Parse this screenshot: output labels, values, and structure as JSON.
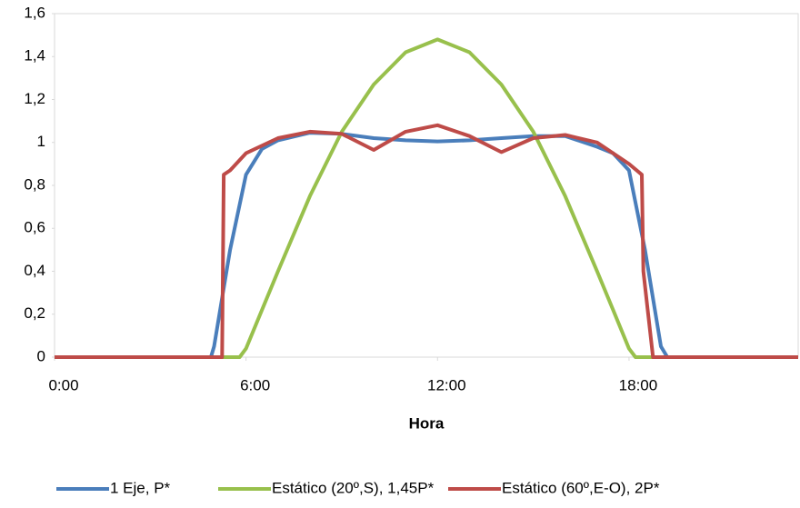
{
  "chart_data": {
    "type": "line",
    "x_label": "Hora",
    "xlim": [
      0,
      23.3
    ],
    "xticks": [
      {
        "value": 0,
        "label": "0:00"
      },
      {
        "value": 6,
        "label": "6:00"
      },
      {
        "value": 12,
        "label": "12:00"
      },
      {
        "value": 18,
        "label": "18:00"
      }
    ],
    "ylim": [
      0,
      1.6
    ],
    "yticks": [
      0,
      {
        "value": 0.2,
        "label": "0,2"
      },
      {
        "value": 0.4,
        "label": "0,4"
      },
      {
        "value": 0.6,
        "label": "0,6"
      },
      {
        "value": 0.8,
        "label": "0,8"
      },
      1,
      {
        "value": 1.2,
        "label": "1,2"
      },
      {
        "value": 1.4,
        "label": "1,4"
      },
      {
        "value": 1.6,
        "label": "1,6"
      }
    ],
    "grid": false,
    "legend": "bottom",
    "series": [
      {
        "name": "1 Eje, P*",
        "color": "#4a7ebb",
        "x": [
          0,
          4.9,
          5.0,
          5.5,
          6,
          6.5,
          7,
          8,
          9,
          10,
          11,
          12,
          13,
          14,
          15,
          16,
          17,
          17.5,
          18,
          18.5,
          19,
          19.2,
          23.3
        ],
        "values": [
          0,
          0,
          0.05,
          0.5,
          0.85,
          0.97,
          1.01,
          1.045,
          1.04,
          1.02,
          1.01,
          1.005,
          1.01,
          1.02,
          1.03,
          1.03,
          0.98,
          0.95,
          0.87,
          0.5,
          0.05,
          0,
          0
        ]
      },
      {
        "name": "Estático (20º,S), 1,45P*",
        "color": "#98c04c",
        "x": [
          0,
          5.8,
          6,
          6.5,
          7,
          8,
          9,
          10,
          11,
          12,
          13,
          14,
          15,
          16,
          17,
          17.5,
          18,
          18.2,
          23.3
        ],
        "values": [
          0,
          0,
          0.04,
          0.22,
          0.4,
          0.75,
          1.05,
          1.27,
          1.42,
          1.48,
          1.42,
          1.27,
          1.05,
          0.75,
          0.4,
          0.22,
          0.04,
          0,
          0
        ]
      },
      {
        "name": "Estático (60º,E-O), 2P*",
        "color": "#be4b48",
        "x": [
          0,
          5.25,
          5.3,
          5.5,
          6,
          7,
          8,
          9,
          10,
          11,
          12,
          13,
          14,
          15,
          16,
          17,
          18,
          18.4,
          18.45,
          18.6,
          18.75,
          18.8,
          23.3
        ],
        "values": [
          0,
          0,
          0.85,
          0.87,
          0.95,
          1.02,
          1.05,
          1.04,
          0.965,
          1.05,
          1.08,
          1.03,
          0.955,
          1.02,
          1.035,
          1.0,
          0.9,
          0.85,
          0.4,
          0.2,
          0,
          0,
          0
        ]
      }
    ]
  }
}
